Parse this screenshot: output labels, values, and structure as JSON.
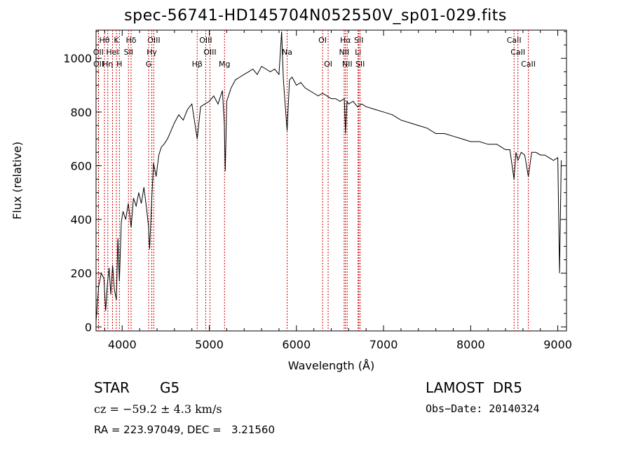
{
  "chart_data": {
    "type": "line",
    "title": "spec-56741-HD145704N052550V_sp01-029.fits",
    "xlabel": "Wavelength (Å)",
    "ylabel": "Flux (relative)",
    "xlim": [
      3700,
      9100
    ],
    "ylim": [
      -15,
      1105
    ],
    "x_ticks": [
      4000,
      5000,
      6000,
      7000,
      8000,
      9000
    ],
    "y_ticks": [
      0,
      200,
      400,
      600,
      800,
      1000
    ],
    "x_tick_labels": [
      "4000",
      "5000",
      "6000",
      "7000",
      "8000",
      "9000"
    ],
    "y_tick_labels": [
      "0",
      "200",
      "400",
      "600",
      "800",
      "1000"
    ],
    "grid": false,
    "series": [
      {
        "x": [
          3700,
          3730,
          3760,
          3790,
          3810,
          3830,
          3850,
          3870,
          3890,
          3910,
          3933,
          3950,
          3968,
          3990,
          4010,
          4040,
          4070,
          4102,
          4130,
          4160,
          4190,
          4220,
          4250,
          4280,
          4300,
          4315,
          4340,
          4360,
          4390,
          4420,
          4450,
          4480,
          4520,
          4560,
          4600,
          4650,
          4700,
          4750,
          4800,
          4861,
          4900,
          4950,
          5000,
          5050,
          5100,
          5150,
          5172,
          5183,
          5200,
          5250,
          5300,
          5350,
          5400,
          5450,
          5500,
          5550,
          5600,
          5650,
          5700,
          5750,
          5800,
          5830,
          5850,
          5893,
          5920,
          5950,
          6000,
          6050,
          6100,
          6150,
          6200,
          6250,
          6300,
          6350,
          6400,
          6450,
          6500,
          6550,
          6563,
          6580,
          6600,
          6650,
          6700,
          6750,
          6800,
          6900,
          7000,
          7100,
          7200,
          7300,
          7400,
          7500,
          7600,
          7700,
          7800,
          7900,
          8000,
          8100,
          8200,
          8300,
          8400,
          8450,
          8498,
          8520,
          8542,
          8580,
          8620,
          8662,
          8700,
          8750,
          8800,
          8850,
          8900,
          8950,
          9000,
          9020,
          9040
        ],
        "y": [
          20,
          150,
          200,
          180,
          60,
          160,
          220,
          120,
          230,
          140,
          100,
          330,
          170,
          390,
          430,
          400,
          460,
          370,
          480,
          450,
          500,
          460,
          520,
          440,
          380,
          290,
          480,
          610,
          560,
          640,
          670,
          680,
          700,
          730,
          760,
          790,
          770,
          810,
          830,
          700,
          820,
          830,
          840,
          860,
          830,
          880,
          760,
          580,
          840,
          890,
          920,
          930,
          940,
          950,
          960,
          940,
          970,
          960,
          950,
          960,
          940,
          1100,
          920,
          730,
          920,
          930,
          900,
          910,
          890,
          880,
          870,
          860,
          870,
          860,
          850,
          850,
          840,
          850,
          720,
          840,
          830,
          840,
          820,
          830,
          820,
          810,
          800,
          790,
          770,
          760,
          750,
          740,
          720,
          720,
          710,
          700,
          690,
          690,
          680,
          680,
          660,
          660,
          550,
          650,
          620,
          650,
          640,
          560,
          650,
          650,
          640,
          640,
          630,
          620,
          630,
          200,
          620
        ]
      }
    ],
    "line_markers": [
      {
        "label": "Hδ",
        "x": 4102,
        "row": 1
      },
      {
        "label": "OIII",
        "x": 4363,
        "row": 1
      },
      {
        "label": "OIII",
        "x": 4959,
        "row": 1
      },
      {
        "label": "OI",
        "x": 6300,
        "row": 1
      },
      {
        "label": "Hα",
        "x": 6563,
        "row": 1
      },
      {
        "label": "SII",
        "x": 6716,
        "row": 1
      },
      {
        "label": "CaII",
        "x": 8498,
        "row": 1
      },
      {
        "label": "Hθ",
        "x": 3797,
        "row": 1
      },
      {
        "label": "K",
        "x": 3933,
        "row": 1
      },
      {
        "label": "OII",
        "x": 3727,
        "row": 2
      },
      {
        "label": "HeI",
        "x": 3889,
        "row": 2
      },
      {
        "label": "SII",
        "x": 4072,
        "row": 2
      },
      {
        "label": "Hγ",
        "x": 4340,
        "row": 2
      },
      {
        "label": "OIII",
        "x": 5007,
        "row": 2
      },
      {
        "label": "Na",
        "x": 5893,
        "row": 2
      },
      {
        "label": "NII",
        "x": 6548,
        "row": 2
      },
      {
        "label": "Li",
        "x": 6708,
        "row": 2
      },
      {
        "label": "CaII",
        "x": 8542,
        "row": 2
      },
      {
        "label": "OII",
        "x": 3729,
        "row": 3
      },
      {
        "label": "Hη",
        "x": 3835,
        "row": 3
      },
      {
        "label": "H",
        "x": 3968,
        "row": 3
      },
      {
        "label": "G",
        "x": 4304,
        "row": 3
      },
      {
        "label": "Hβ",
        "x": 4861,
        "row": 3
      },
      {
        "label": "Mg",
        "x": 5175,
        "row": 3
      },
      {
        "label": "OI",
        "x": 6364,
        "row": 3
      },
      {
        "label": "NII",
        "x": 6583,
        "row": 3
      },
      {
        "label": "SII",
        "x": 6731,
        "row": 3
      },
      {
        "label": "CaII",
        "x": 8662,
        "row": 3
      }
    ],
    "colors": {
      "spectrum": "#000000",
      "markers": "#cc0000"
    }
  },
  "info": {
    "object_class": "STAR",
    "subclass": "G5",
    "survey": "LAMOST  DR5",
    "redshift": "cz = −59.2 ± 4.3 km/s",
    "obs_date": "Obs−Date: 20140324",
    "coords": "RA = 223.97049, DEC =   3.21560"
  }
}
